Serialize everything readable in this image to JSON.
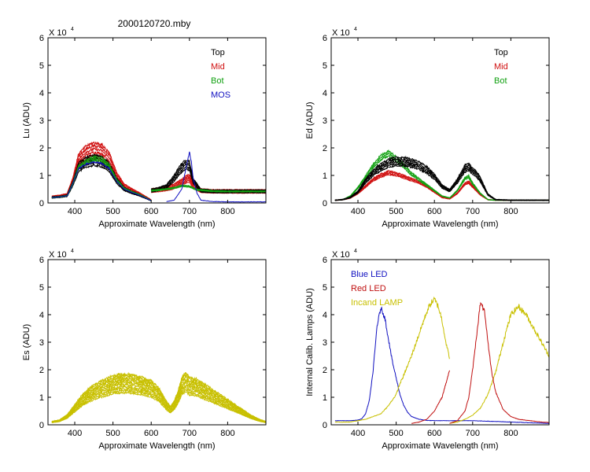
{
  "figure_title": "2000120720.mby",
  "chart_data": [
    {
      "type": "line",
      "panel": "top-left",
      "ylabel": "Lu (ADU)",
      "xlabel": "Approximate Wavelength (nm)",
      "multiplier": "X 10",
      "multiplier_exp": "4",
      "xlim": [
        330,
        900
      ],
      "ylim": [
        0,
        6
      ],
      "xticks": [
        400,
        500,
        600,
        700,
        800
      ],
      "yticks": [
        0,
        1,
        2,
        3,
        4,
        5,
        6
      ],
      "legend": [
        {
          "label": "Top",
          "color": "#000000"
        },
        {
          "label": "Mid",
          "color": "#d01010"
        },
        {
          "label": "Bot",
          "color": "#10a010"
        },
        {
          "label": "MOS",
          "color": "#1010c0"
        }
      ],
      "series": [
        {
          "name": "Mid",
          "color": "#d01010",
          "count": 6,
          "spread": 0.06,
          "noise": 0.05,
          "base": 0.0,
          "segments": [
            {
              "x": [
                340,
                360,
                380,
                395,
                410,
                430,
                450,
                470,
                490,
                510,
                530,
                550,
                570,
                590,
                600
              ],
              "y": [
                0.22,
                0.25,
                0.3,
                0.8,
                1.55,
                1.8,
                1.9,
                1.85,
                1.6,
                0.95,
                0.6,
                0.45,
                0.32,
                0.18,
                0.1
              ]
            },
            {
              "x": [
                600,
                620,
                640,
                660,
                680,
                690,
                700,
                710,
                730,
                760,
                800,
                850,
                900
              ],
              "y": [
                0.45,
                0.48,
                0.52,
                0.6,
                0.75,
                0.85,
                0.9,
                0.62,
                0.45,
                0.42,
                0.42,
                0.42,
                0.42
              ]
            }
          ]
        },
        {
          "name": "Top",
          "color": "#000000",
          "count": 5,
          "spread": 0.06,
          "noise": 0.05,
          "base": 0.0,
          "segments": [
            {
              "x": [
                340,
                360,
                380,
                395,
                410,
                430,
                450,
                470,
                490,
                510,
                530,
                550,
                570,
                590,
                600
              ],
              "y": [
                0.2,
                0.22,
                0.26,
                0.7,
                1.3,
                1.48,
                1.55,
                1.5,
                1.3,
                0.8,
                0.5,
                0.38,
                0.28,
                0.15,
                0.08
              ]
            },
            {
              "x": [
                600,
                620,
                640,
                660,
                675,
                690,
                700,
                710,
                730,
                760,
                800,
                850,
                900
              ],
              "y": [
                0.45,
                0.5,
                0.6,
                0.9,
                1.2,
                1.4,
                1.35,
                0.8,
                0.45,
                0.42,
                0.42,
                0.42,
                0.42
              ]
            }
          ]
        },
        {
          "name": "Bot",
          "color": "#10a010",
          "count": 3,
          "spread": 0.04,
          "noise": 0.04,
          "base": 0.0,
          "segments": [
            {
              "x": [
                340,
                360,
                380,
                395,
                410,
                430,
                450,
                470,
                490,
                510,
                530,
                550,
                570,
                590,
                600
              ],
              "y": [
                0.2,
                0.22,
                0.26,
                0.7,
                1.3,
                1.5,
                1.62,
                1.58,
                1.35,
                0.82,
                0.52,
                0.4,
                0.3,
                0.16,
                0.08
              ]
            },
            {
              "x": [
                600,
                620,
                640,
                660,
                680,
                700,
                720,
                760,
                800,
                850,
                900
              ],
              "y": [
                0.45,
                0.47,
                0.5,
                0.55,
                0.62,
                0.6,
                0.48,
                0.43,
                0.42,
                0.42,
                0.42
              ]
            }
          ]
        },
        {
          "name": "MOS",
          "color": "#1010c0",
          "count": 1,
          "spread": 0.0,
          "noise": 0.04,
          "base": 0.0,
          "segments": [
            {
              "x": [
                340,
                360,
                380,
                395,
                410,
                430,
                450,
                470,
                490,
                510,
                530,
                550,
                570,
                590,
                600
              ],
              "y": [
                0.2,
                0.22,
                0.26,
                0.7,
                1.25,
                1.42,
                1.48,
                1.44,
                1.25,
                0.78,
                0.5,
                0.38,
                0.28,
                0.15,
                0.08
              ]
            },
            {
              "x": [
                640,
                660,
                680,
                690,
                700,
                705,
                710,
                720,
                730,
                760,
                800,
                850,
                900
              ],
              "y": [
                0.05,
                0.1,
                0.5,
                1.2,
                1.85,
                1.5,
                0.85,
                0.35,
                0.1,
                0.05,
                0.04,
                0.04,
                0.04
              ]
            }
          ]
        }
      ]
    },
    {
      "type": "line",
      "panel": "top-right",
      "ylabel": "Ed  (ADU)",
      "xlabel": "Approximate Wavelength (nm)",
      "multiplier": "X 10",
      "multiplier_exp": "4",
      "xlim": [
        330,
        900
      ],
      "ylim": [
        0,
        6
      ],
      "xticks": [
        400,
        500,
        600,
        700,
        800
      ],
      "yticks": [
        0,
        1,
        2,
        3,
        4,
        5,
        6
      ],
      "legend": [
        {
          "label": "Top",
          "color": "#000000"
        },
        {
          "label": "Mid",
          "color": "#d01010"
        },
        {
          "label": "Bot",
          "color": "#10a010"
        }
      ],
      "series": [
        {
          "name": "Mid",
          "color": "#d01010",
          "count": 4,
          "spread": 0.04,
          "noise": 0.04,
          "base": 0.0,
          "segments": [
            {
              "x": [
                340,
                360,
                380,
                400,
                420,
                440,
                460,
                480,
                500,
                520,
                540,
                560,
                580,
                600,
                620,
                640,
                660,
                680,
                690,
                700,
                720,
                740,
                760,
                800,
                850,
                900
              ],
              "y": [
                0.1,
                0.12,
                0.18,
                0.35,
                0.6,
                0.85,
                1.0,
                1.1,
                1.05,
                0.95,
                0.85,
                0.75,
                0.6,
                0.4,
                0.2,
                0.15,
                0.35,
                0.7,
                0.75,
                0.6,
                0.3,
                0.12,
                0.1,
                0.1,
                0.1,
                0.1
              ]
            }
          ]
        },
        {
          "name": "Bot",
          "color": "#10a010",
          "count": 3,
          "spread": 0.05,
          "noise": 0.04,
          "base": 0.0,
          "segments": [
            {
              "x": [
                340,
                360,
                380,
                400,
                420,
                440,
                460,
                480,
                500,
                520,
                540,
                560,
                580,
                600,
                620,
                640,
                660,
                680,
                690,
                700,
                720,
                740,
                760,
                800,
                850,
                900
              ],
              "y": [
                0.1,
                0.12,
                0.25,
                0.55,
                0.95,
                1.35,
                1.65,
                1.8,
                1.6,
                1.35,
                1.05,
                0.85,
                0.65,
                0.45,
                0.25,
                0.18,
                0.45,
                0.9,
                0.95,
                0.7,
                0.35,
                0.12,
                0.1,
                0.1,
                0.1,
                0.1
              ]
            }
          ]
        },
        {
          "name": "Top",
          "color": "#000000",
          "count": 5,
          "spread": 0.05,
          "noise": 0.05,
          "base": 0.0,
          "segments": [
            {
              "x": [
                340,
                360,
                380,
                400,
                420,
                440,
                460,
                480,
                500,
                520,
                540,
                560,
                580,
                600,
                620,
                640,
                660,
                680,
                690,
                700,
                710,
                720,
                740,
                760,
                800,
                850,
                900
              ],
              "y": [
                0.1,
                0.12,
                0.2,
                0.4,
                0.8,
                1.1,
                1.3,
                1.45,
                1.5,
                1.5,
                1.45,
                1.35,
                1.2,
                0.95,
                0.6,
                0.45,
                0.8,
                1.25,
                1.3,
                1.15,
                1.05,
                0.85,
                0.3,
                0.12,
                0.1,
                0.1,
                0.1
              ]
            }
          ]
        }
      ]
    },
    {
      "type": "line",
      "panel": "bottom-left",
      "ylabel": "Es  (ADU)",
      "xlabel": "Approximate Wavelength (nm)",
      "multiplier": "X 10",
      "multiplier_exp": "4",
      "xlim": [
        330,
        900
      ],
      "ylim": [
        0,
        6
      ],
      "xticks": [
        400,
        500,
        600,
        700,
        800
      ],
      "yticks": [
        0,
        1,
        2,
        3,
        4,
        5,
        6
      ],
      "legend": [],
      "series": [
        {
          "name": "Es",
          "color": "#c8c000",
          "count": 10,
          "spread": 0.05,
          "noise": 0.06,
          "base": 0.0,
          "segments": [
            {
              "x": [
                340,
                360,
                380,
                400,
                420,
                440,
                460,
                480,
                500,
                520,
                540,
                560,
                580,
                600,
                620,
                640,
                650
              ],
              "y": [
                0.1,
                0.15,
                0.3,
                0.6,
                0.9,
                1.1,
                1.25,
                1.35,
                1.45,
                1.5,
                1.5,
                1.45,
                1.4,
                1.3,
                1.1,
                0.7,
                0.55
              ]
            },
            {
              "x": [
                650,
                660,
                670,
                680,
                690,
                700,
                720,
                740,
                760,
                780,
                800,
                820,
                840,
                860,
                880,
                900
              ],
              "y": [
                0.55,
                0.7,
                1.0,
                1.4,
                1.55,
                1.4,
                1.35,
                1.2,
                1.05,
                0.9,
                0.75,
                0.6,
                0.45,
                0.3,
                0.18,
                0.1
              ]
            }
          ]
        }
      ]
    },
    {
      "type": "line",
      "panel": "bottom-right",
      "ylabel": "Internal Calib. Lamps (ADU)",
      "xlabel": "Approximate Wavelength (nm)",
      "multiplier": "X 10",
      "multiplier_exp": "4",
      "xlim": [
        330,
        900
      ],
      "ylim": [
        0,
        6
      ],
      "xticks": [
        400,
        500,
        600,
        700,
        800
      ],
      "yticks": [
        0,
        1,
        2,
        3,
        4,
        5,
        6
      ],
      "legend": [
        {
          "label": "Blue LED",
          "color": "#1010c0"
        },
        {
          "label": "Red LED",
          "color": "#c01010"
        },
        {
          "label": "Incand LAMP",
          "color": "#c8c000"
        }
      ],
      "series": [
        {
          "name": "Blue LED",
          "color": "#1010c0",
          "count": 1,
          "spread": 0.0,
          "noise": 0.04,
          "base": 0.0,
          "segments": [
            {
              "x": [
                340,
                380,
                400,
                410,
                420,
                430,
                440,
                450,
                460,
                470,
                480,
                490,
                500,
                510,
                520,
                530,
                540,
                560,
                580,
                600,
                640,
                700,
                800,
                900
              ],
              "y": [
                0.15,
                0.15,
                0.17,
                0.22,
                0.4,
                0.9,
                2.0,
                3.6,
                4.25,
                3.9,
                3.1,
                2.3,
                1.7,
                1.1,
                0.7,
                0.45,
                0.3,
                0.2,
                0.16,
                0.15,
                0.15,
                0.15,
                0.1,
                0.05
              ]
            }
          ]
        },
        {
          "name": "Incand LAMP",
          "color": "#c8c000",
          "count": 1,
          "spread": 0.0,
          "noise": 0.05,
          "base": 0.0,
          "segments": [
            {
              "x": [
                340,
                380,
                420,
                460,
                480,
                500,
                510,
                520,
                540,
                560,
                580,
                590,
                600,
                610,
                620,
                630,
                640
              ],
              "y": [
                0.1,
                0.1,
                0.2,
                0.4,
                0.7,
                1.1,
                1.5,
                1.8,
                2.5,
                3.3,
                4.1,
                4.4,
                4.55,
                4.3,
                3.8,
                3.0,
                2.4
              ]
            },
            {
              "x": [
                640,
                660,
                680,
                700,
                720,
                740,
                760,
                780,
                800,
                820,
                840,
                860,
                880,
                900
              ],
              "y": [
                0.05,
                0.1,
                0.2,
                0.35,
                0.6,
                1.1,
                1.9,
                3.0,
                4.0,
                4.3,
                4.0,
                3.5,
                3.0,
                2.5
              ]
            }
          ]
        },
        {
          "name": "Red LED",
          "color": "#c01010",
          "count": 1,
          "spread": 0.0,
          "noise": 0.04,
          "base": 0.0,
          "segments": [
            {
              "x": [
                540,
                560,
                580,
                600,
                620,
                630,
                640
              ],
              "y": [
                0.05,
                0.1,
                0.2,
                0.5,
                1.0,
                1.5,
                2.0
              ]
            },
            {
              "x": [
                640,
                660,
                680,
                690,
                700,
                710,
                720,
                730,
                740,
                750,
                760,
                780,
                800,
                820,
                850,
                880,
                900
              ],
              "y": [
                0.05,
                0.15,
                0.5,
                1.0,
                2.0,
                3.2,
                4.4,
                4.2,
                3.0,
                1.9,
                1.2,
                0.55,
                0.3,
                0.2,
                0.15,
                0.1,
                0.08
              ]
            }
          ]
        }
      ]
    }
  ]
}
